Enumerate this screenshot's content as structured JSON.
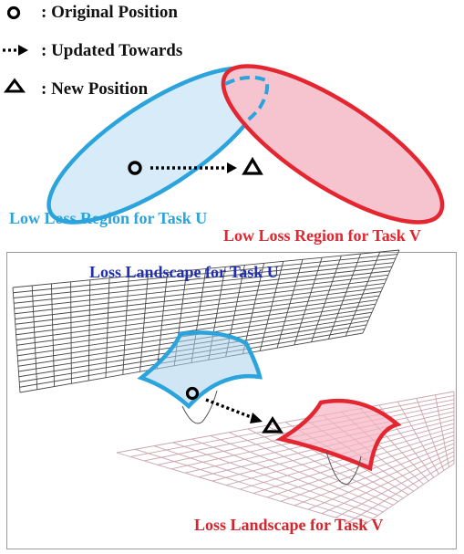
{
  "legend": {
    "original": ": Original Position",
    "updated": ": Updated Towards",
    "new": ": New Position"
  },
  "top_panel": {
    "region_u_label": "Low Loss Region for Task U",
    "region_v_label": "Low Loss Region for Task V"
  },
  "bottom_panel": {
    "landscape_u_label": "Loss Landscape for Task U",
    "landscape_v_label": "Loss Landscape for Task V"
  },
  "colors": {
    "task_u": "#2ba3dd",
    "task_u_fill": "#d7ebf8",
    "task_v": "#e3262f",
    "task_v_fill": "#f6c4cf",
    "label_u_bottom": "#1f2fb0",
    "label_v_bottom": "#d4262c"
  }
}
